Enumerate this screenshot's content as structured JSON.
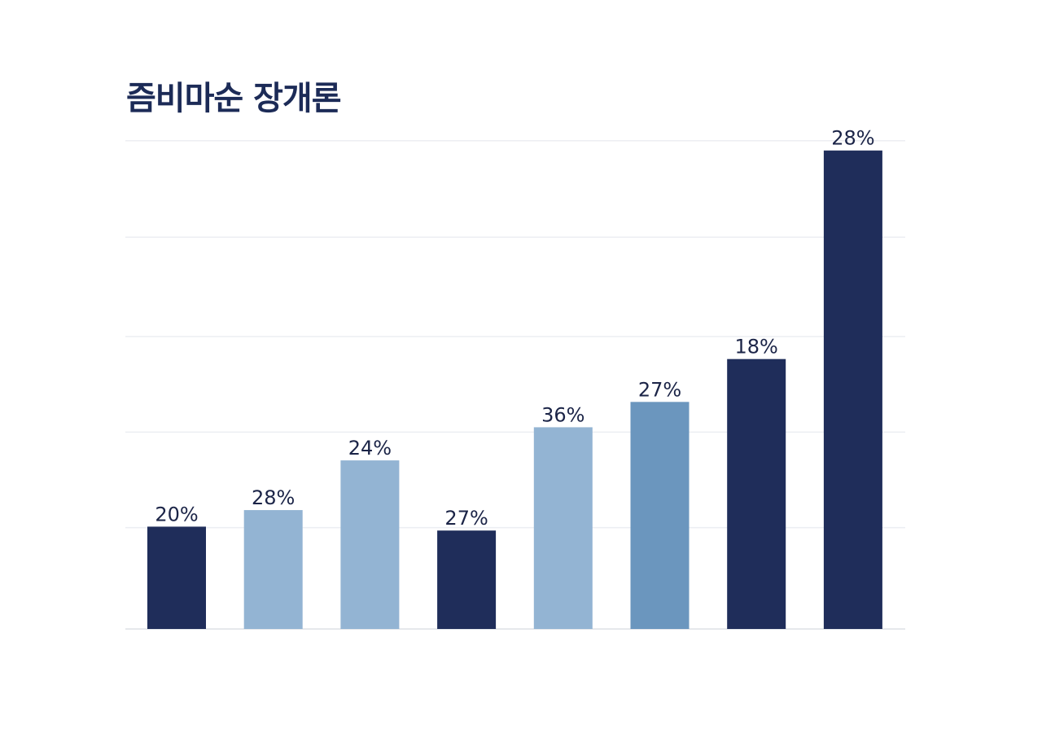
{
  "chart_data": {
    "type": "bar",
    "title": "즘비마순 장개론",
    "xlabel": "",
    "ylabel": "",
    "categories": [
      "",
      "",
      "",
      "",
      "",
      "",
      "",
      ""
    ],
    "values": [
      10.5,
      12.2,
      17.3,
      10.1,
      20.7,
      23.3,
      27.7,
      49.1
    ],
    "labels": [
      "20%",
      "28%",
      "24%",
      "27%",
      "36%",
      "27%",
      "18%",
      "28%"
    ],
    "colors": [
      "#1f2d5a",
      "#93b4d3",
      "#93b4d3",
      "#1f2d5a",
      "#93b4d3",
      "#6b96be",
      "#1f2d5a",
      "#1f2d5a"
    ],
    "ylim": [
      0,
      51
    ],
    "gridlines": [
      0,
      10.4,
      20.2,
      30,
      40.2,
      50.1
    ],
    "grid": true,
    "legend": "none"
  }
}
